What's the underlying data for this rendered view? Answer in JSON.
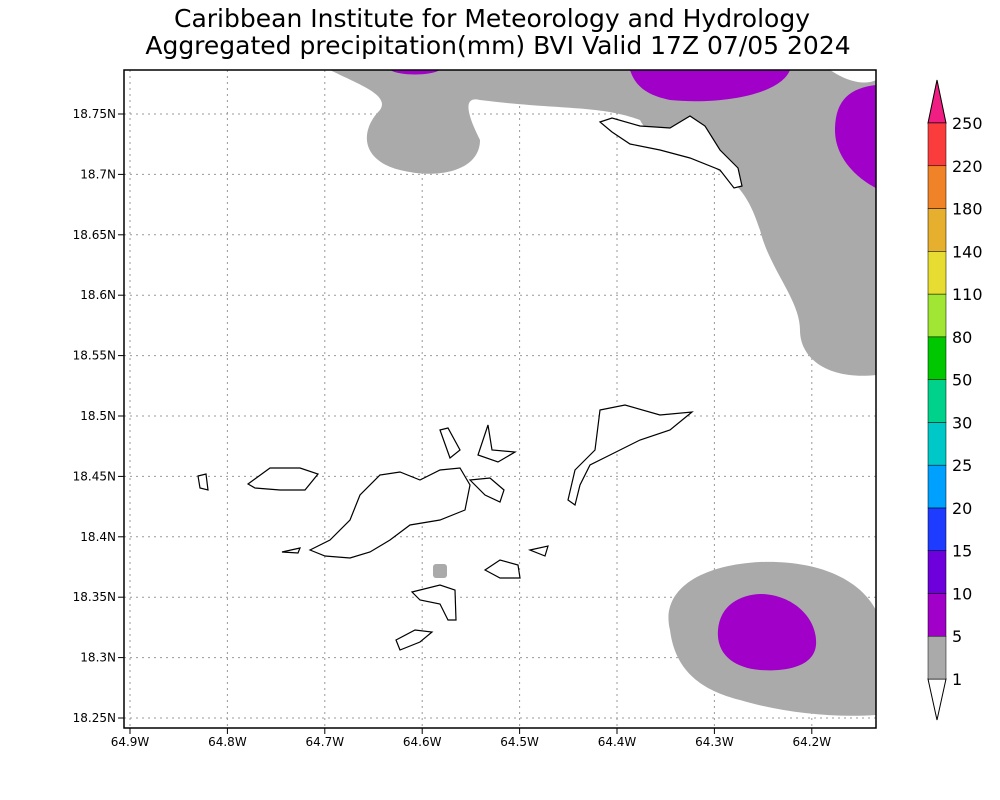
{
  "header": {
    "title": "Caribbean Institute for Meteorology and Hydrology",
    "subtitle": "Aggregated precipitation(mm) BVI Valid 17Z 07/05 2024"
  },
  "map": {
    "lat_labels": [
      "18.75N",
      "18.7N",
      "18.65N",
      "18.6N",
      "18.55N",
      "18.5N",
      "18.45N",
      "18.4N",
      "18.35N",
      "18.3N",
      "18.25N"
    ],
    "lon_labels": [
      "64.9W",
      "64.8W",
      "64.7W",
      "64.6W",
      "64.5W",
      "64.4W",
      "64.3W",
      "64.2W"
    ]
  },
  "colorbar": {
    "labels": [
      "1",
      "5",
      "10",
      "15",
      "20",
      "25",
      "30",
      "50",
      "80",
      "110",
      "140",
      "180",
      "220",
      "250"
    ]
  }
}
